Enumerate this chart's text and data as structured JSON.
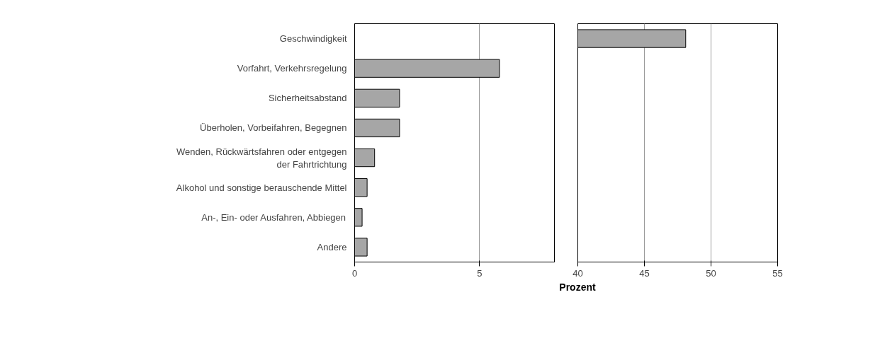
{
  "chart_data": [
    {
      "type": "bar",
      "orientation": "horizontal",
      "xlabel": "Prozent",
      "categories": [
        "Geschwindigkeit",
        "Vorfahrt, Verkehrsregelung",
        "Sicherheitsabstand",
        "Überholen, Vorbeifahren, Begegnen",
        "Wenden, Rückwärtsfahren oder entgegen der Fahrtrichtung",
        "Alkohol und sonstige berauschende Mittel",
        "An-, Ein- oder Ausfahren, Abbiegen",
        "Andere"
      ],
      "values": [
        null,
        5.8,
        1.8,
        1.8,
        0.8,
        0.5,
        0.3,
        0.5
      ],
      "color": "#a6a6a6",
      "xlim": [
        0,
        8
      ],
      "xticks": [
        0,
        5
      ],
      "grid": "x"
    },
    {
      "type": "bar",
      "orientation": "horizontal",
      "categories": [
        "Geschwindigkeit",
        "Vorfahrt, Verkehrsregelung",
        "Sicherheitsabstand",
        "Überholen, Vorbeifahren, Begegnen",
        "Wenden, Rückwärtsfahren oder entgegen der Fahrtrichtung",
        "Alkohol und sonstige berauschende Mittel",
        "An-, Ein- oder Ausfahren, Abbiegen",
        "Andere"
      ],
      "values": [
        48.1,
        null,
        null,
        null,
        null,
        null,
        null,
        null
      ],
      "color": "#a6a6a6",
      "xlim": [
        40,
        55
      ],
      "xticks": [
        40,
        45,
        50,
        55
      ],
      "grid": "x",
      "tick_labels": "x"
    }
  ]
}
